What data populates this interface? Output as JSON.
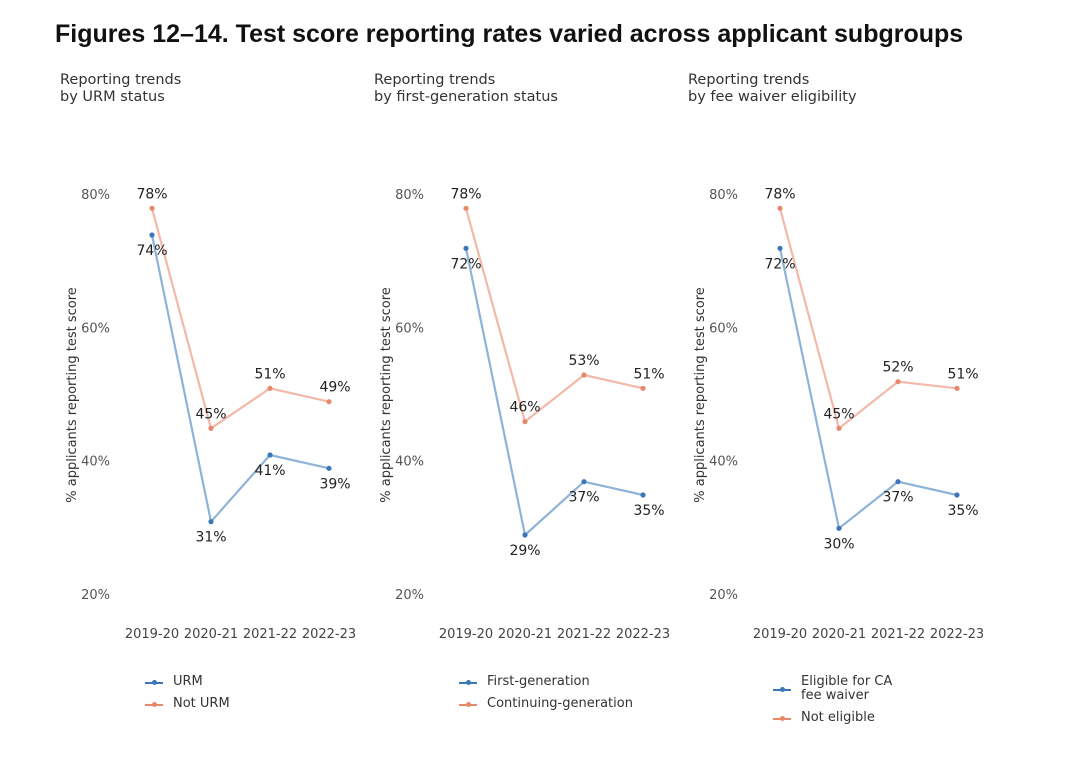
{
  "figure_title": "Figures 12–14. Test score reporting rates varied across applicant subgroups",
  "colors": {
    "blue": "#8db4d8",
    "blue_dot": "#3a76b8",
    "orange": "#f3b9a8",
    "orange_dot": "#e8886a"
  },
  "chart_data": [
    {
      "type": "line",
      "title_lines": [
        "Reporting trends",
        "by URM status"
      ],
      "ylabel": "% applicants reporting test score",
      "xlabel": "",
      "categories": [
        "2019-20",
        "2020-21",
        "2021-22",
        "2022-23"
      ],
      "yticks": [
        "20%",
        "40%",
        "60%",
        "80%"
      ],
      "ylim": [
        20,
        80
      ],
      "grid": false,
      "legend_position": "bottom",
      "series": [
        {
          "name": "URM",
          "color": "blue",
          "values": [
            74,
            31,
            41,
            39
          ],
          "labels": [
            "74%",
            "31%",
            "41%",
            "39%"
          ]
        },
        {
          "name": "Not URM",
          "color": "orange",
          "values": [
            78,
            45,
            51,
            49
          ],
          "labels": [
            "78%",
            "45%",
            "51%",
            "49%"
          ]
        }
      ]
    },
    {
      "type": "line",
      "title_lines": [
        "Reporting trends",
        "by first-generation status"
      ],
      "ylabel": "% applicants reporting test score",
      "xlabel": "",
      "categories": [
        "2019-20",
        "2020-21",
        "2021-22",
        "2022-23"
      ],
      "yticks": [
        "20%",
        "40%",
        "60%",
        "80%"
      ],
      "ylim": [
        20,
        80
      ],
      "grid": false,
      "legend_position": "bottom",
      "series": [
        {
          "name": "First-generation",
          "color": "blue",
          "values": [
            72,
            29,
            37,
            35
          ],
          "labels": [
            "72%",
            "29%",
            "37%",
            "35%"
          ]
        },
        {
          "name": "Continuing-generation",
          "color": "orange",
          "values": [
            78,
            46,
            53,
            51
          ],
          "labels": [
            "78%",
            "46%",
            "53%",
            "51%"
          ]
        }
      ]
    },
    {
      "type": "line",
      "title_lines": [
        "Reporting trends",
        "by fee waiver eligibility"
      ],
      "ylabel": "% applicants reporting test score",
      "xlabel": "",
      "categories": [
        "2019-20",
        "2020-21",
        "2021-22",
        "2022-23"
      ],
      "yticks": [
        "20%",
        "40%",
        "60%",
        "80%"
      ],
      "ylim": [
        20,
        80
      ],
      "grid": false,
      "legend_position": "bottom",
      "series": [
        {
          "name": "Eligible for CA\nfee waiver",
          "color": "blue",
          "values": [
            72,
            30,
            37,
            35
          ],
          "labels": [
            "72%",
            "30%",
            "37%",
            "35%"
          ]
        },
        {
          "name": "Not eligible",
          "color": "orange",
          "values": [
            78,
            45,
            52,
            51
          ],
          "labels": [
            "78%",
            "45%",
            "52%",
            "51%"
          ]
        }
      ]
    }
  ]
}
